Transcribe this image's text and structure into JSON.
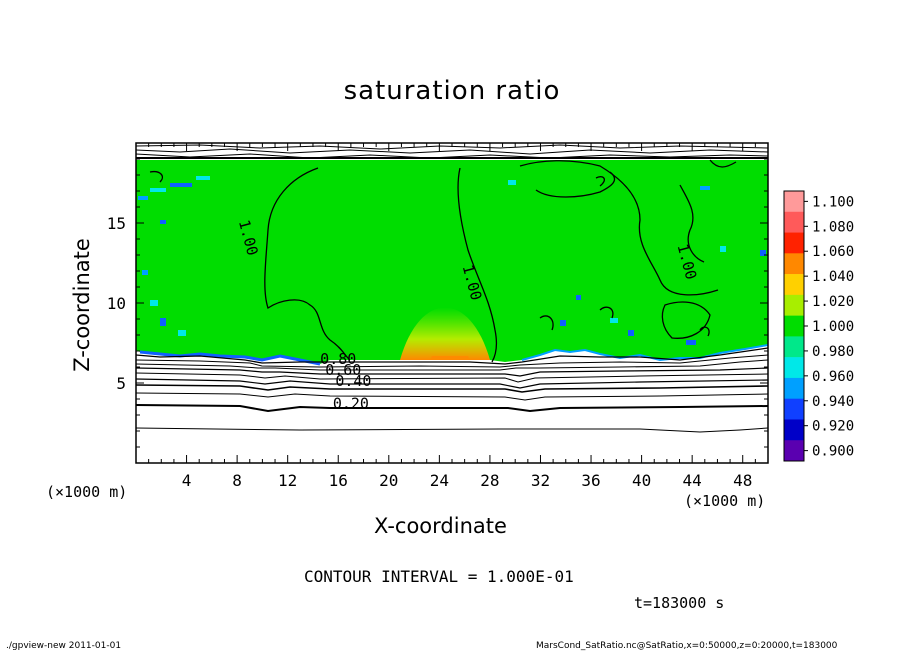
{
  "chart_data": {
    "type": "heatmap",
    "title": "saturation ratio",
    "xlabel": "X-coordinate",
    "ylabel": "Z-coordinate",
    "x_unit": "(×1000 m)",
    "xlim": [
      0,
      50
    ],
    "ylim": [
      0,
      20
    ],
    "x_ticks": [
      4,
      8,
      12,
      16,
      20,
      24,
      28,
      32,
      36,
      40,
      44,
      48
    ],
    "y_ticks": [
      5,
      10,
      15
    ],
    "colorbar": {
      "levels": [
        "1.100",
        "1.080",
        "1.060",
        "1.040",
        "1.020",
        "1.000",
        "0.980",
        "0.960",
        "0.940",
        "0.920",
        "0.900"
      ],
      "colors": [
        "#ff9a9a",
        "#ff5a5a",
        "#ff2200",
        "#ff8800",
        "#ffd000",
        "#a8ee00",
        "#00dd00",
        "#00e88a",
        "#00e8e8",
        "#00a0ff",
        "#1040ff",
        "#0000c8",
        "#5a00b0"
      ]
    },
    "contour_labels": [
      {
        "text": "1.00",
        "x": 8.5,
        "z": 14.0
      },
      {
        "text": "1.00",
        "x": 26.2,
        "z": 11.2
      },
      {
        "text": "1.00",
        "x": 43.2,
        "z": 12.5
      },
      {
        "text": "0.80",
        "x": 16.0,
        "z": 6.2
      },
      {
        "text": "0.60",
        "x": 16.4,
        "z": 5.5
      },
      {
        "text": "0.40",
        "x": 17.2,
        "z": 4.8
      },
      {
        "text": "0.20",
        "x": 17.0,
        "z": 3.4
      }
    ],
    "contour_interval": "CONTOUR INTERVAL = 1.000E-01"
  },
  "annotations": {
    "time": "t=183000 s",
    "footer_left": "./gpview-new  2011-01-01",
    "footer_right": "MarsCond_SatRatio.nc@SatRatio,x=0:50000,z=0:20000,t=183000"
  }
}
